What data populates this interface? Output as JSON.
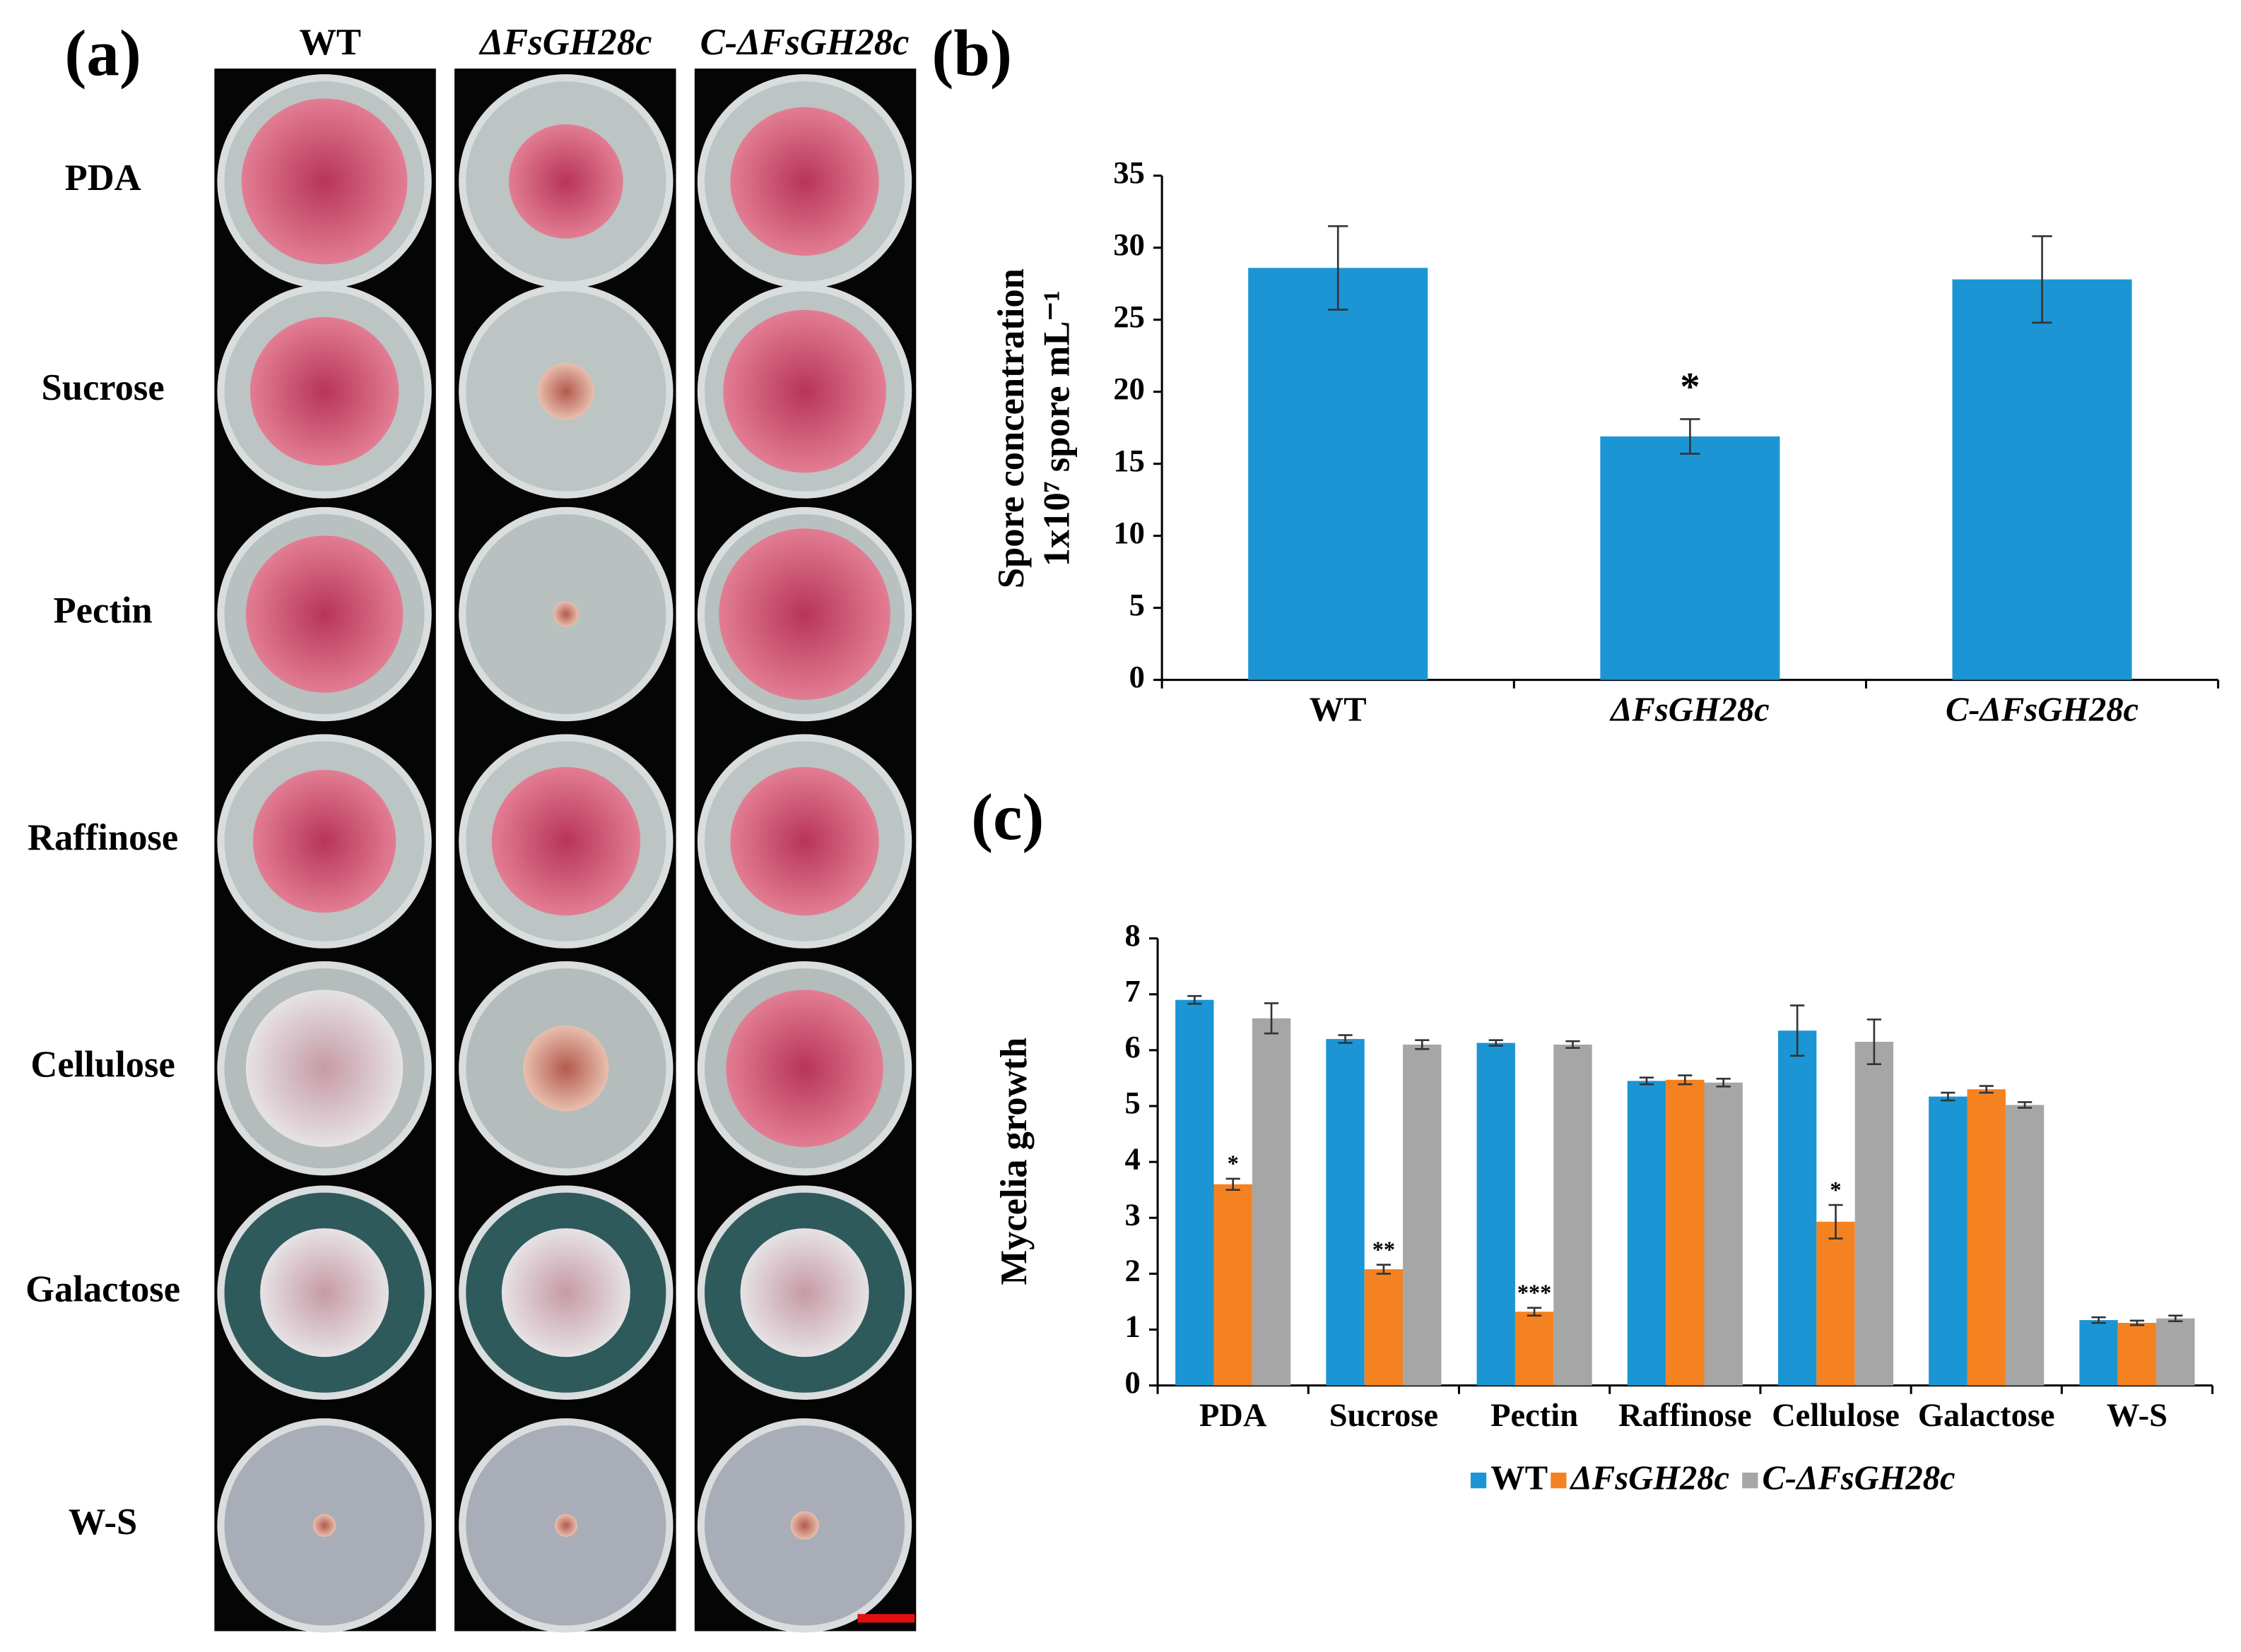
{
  "panel_a": {
    "panel_label": "(a)",
    "columns": [
      "WT",
      "ΔFsGH28c",
      "C-ΔFsGH28c"
    ],
    "rows": [
      "PDA",
      "Sucrose",
      "Pectin",
      "Raffinose",
      "Cellulose",
      "Galactose",
      "W-S"
    ]
  },
  "chart_data": [
    {
      "type": "bar",
      "panel_label": "(b)",
      "ylabel": [
        "Spore concentration",
        "1x10⁷ spore mL⁻¹"
      ],
      "categories": [
        "WT",
        "ΔFsGH28c",
        "C-ΔFsGH28c"
      ],
      "values": [
        28.6,
        16.9,
        27.8
      ],
      "errors": [
        2.9,
        1.2,
        3.0
      ],
      "annotations": [
        null,
        "*",
        null
      ],
      "color": "#1b95d3",
      "ylim": [
        0,
        35
      ],
      "yticks": [
        0,
        5,
        10,
        15,
        20,
        25,
        30,
        35
      ],
      "grid": false
    },
    {
      "type": "grouped-bar",
      "panel_label": "(c)",
      "ylabel": "Mycelia growth",
      "categories": [
        "PDA",
        "Sucrose",
        "Pectin",
        "Raffinose",
        "Cellulose",
        "Galactose",
        "W-S"
      ],
      "series": [
        {
          "name": "WT",
          "color": "#1b95d3",
          "values": [
            6.9,
            6.2,
            6.13,
            5.45,
            6.35,
            5.17,
            1.17
          ],
          "errors": [
            0.07,
            0.07,
            0.05,
            0.06,
            0.45,
            0.07,
            0.05
          ]
        },
        {
          "name": "ΔFsGH28c",
          "color": "#f58220",
          "values": [
            3.6,
            2.08,
            1.32,
            5.47,
            2.93,
            5.3,
            1.12
          ],
          "errors": [
            0.1,
            0.08,
            0.07,
            0.08,
            0.3,
            0.06,
            0.04
          ],
          "annotations": [
            "*",
            "**",
            "***",
            null,
            "*",
            null,
            null
          ]
        },
        {
          "name": "C-ΔFsGH28c",
          "color": "#a6a6a6",
          "values": [
            6.57,
            6.1,
            6.1,
            5.42,
            6.15,
            5.02,
            1.2
          ],
          "errors": [
            0.27,
            0.08,
            0.06,
            0.07,
            0.4,
            0.05,
            0.05
          ]
        }
      ],
      "ylim": [
        0,
        8
      ],
      "yticks": [
        0,
        1,
        2,
        3,
        4,
        5,
        6,
        7,
        8
      ],
      "grid": false,
      "legend": "bottom"
    }
  ]
}
